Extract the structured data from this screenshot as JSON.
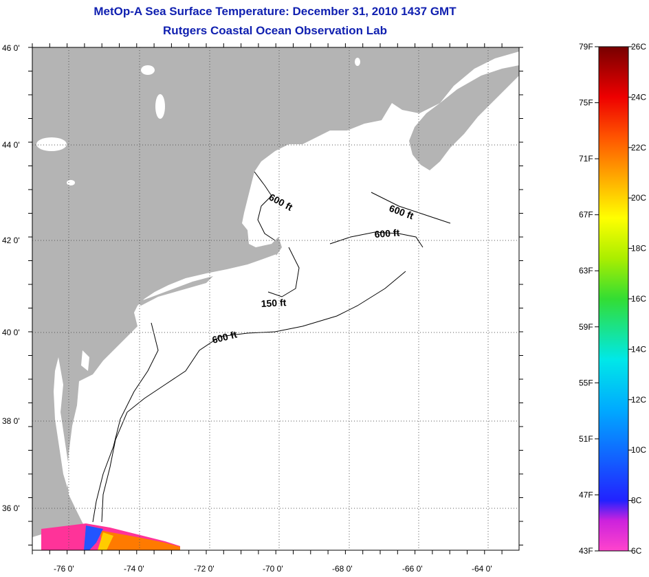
{
  "header": {
    "title": "MetOp-A Sea Surface Temperature:  December 31, 2010 1437 GMT",
    "subtitle": "Rutgers Coastal Ocean Observation Lab"
  },
  "map": {
    "lat_labels": [
      "46 0'",
      "44 0'",
      "42 0'",
      "40 0'",
      "38 0'",
      "36 0'"
    ],
    "lon_labels": [
      "-76 0'",
      "-74 0'",
      "-72 0'",
      "-70 0'",
      "-68 0'",
      "-66 0'",
      "-64 0'"
    ],
    "contour_labels": [
      "600 ft",
      "600 ft",
      "600 ft",
      "150 ft",
      "600 ft"
    ]
  },
  "colorbar": {
    "f_labels": [
      "79F",
      "75F",
      "71F",
      "67F",
      "63F",
      "59F",
      "55F",
      "51F",
      "47F",
      "43F"
    ],
    "c_labels": [
      "26C",
      "24C",
      "22C",
      "20C",
      "18C",
      "16C",
      "14C",
      "12C",
      "10C",
      "8C",
      "6C"
    ]
  },
  "colors": {
    "land": "#b4b4b4",
    "title": "#1020b0"
  }
}
